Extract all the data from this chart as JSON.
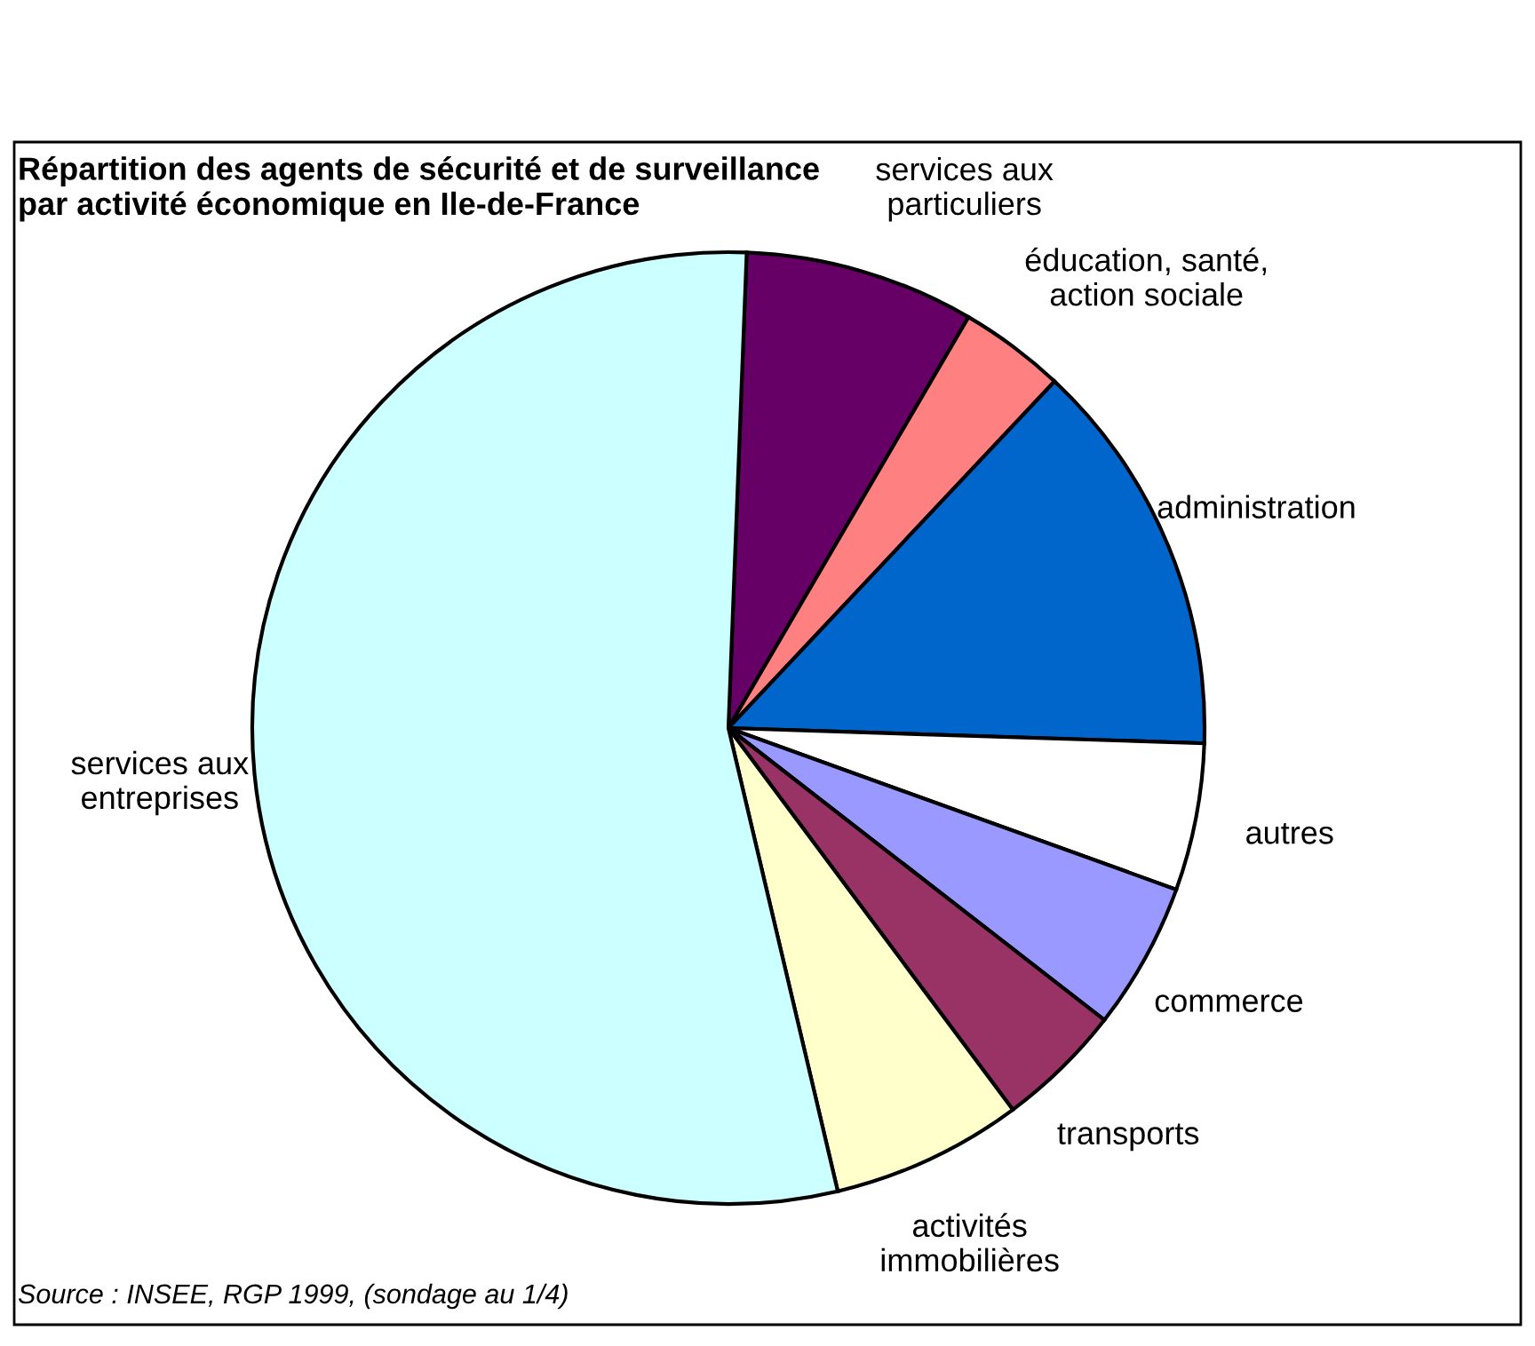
{
  "chart_data": {
    "type": "pie",
    "title": "Répartition des agents de sécurité et de surveillance\npar activité économique en Ile-de-France",
    "categories": [
      "services aux\nparticuliers",
      "éducation, santé,\naction sociale",
      "administration",
      "autres",
      "commerce",
      "transports",
      "activités\nimmobilières",
      "services aux\nentreprises"
    ],
    "values": [
      7.8,
      3.6,
      13.5,
      5,
      5,
      4.3,
      6.5,
      54.3
    ],
    "colors": [
      "#660066",
      "#ff8080",
      "#0066cc",
      "#ffffff",
      "#9999ff",
      "#993366",
      "#ffffcc",
      "#ccffff"
    ],
    "annotations": [
      "Source : INSEE, RGP 1999, (sondage au 1/4)"
    ]
  }
}
